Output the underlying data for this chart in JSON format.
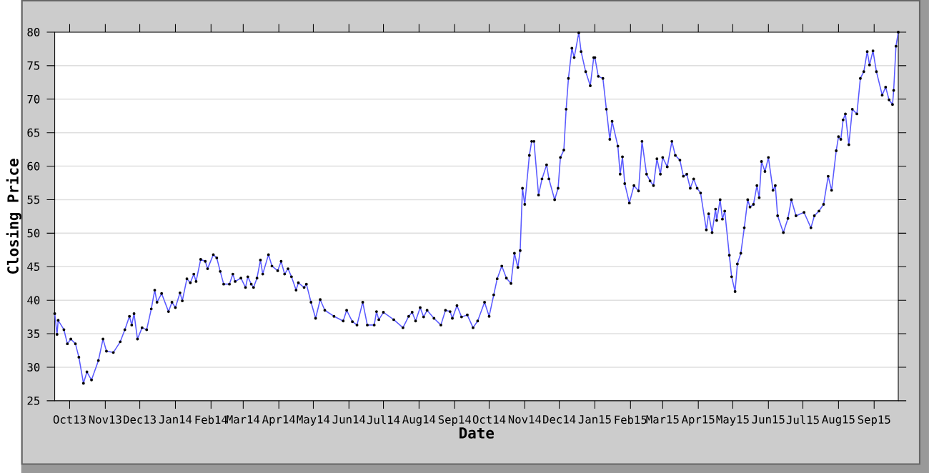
{
  "chart_data": {
    "type": "line",
    "xlabel": "Date",
    "ylabel": "Closing Price",
    "xlim": [
      "2013-09-18",
      "2015-09-22"
    ],
    "ylim": [
      25,
      80
    ],
    "yticks": [
      25,
      30,
      35,
      40,
      45,
      50,
      55,
      60,
      65,
      70,
      75,
      80
    ],
    "xticks": [
      {
        "value": "2013-10-01",
        "label": "Oct13"
      },
      {
        "value": "2013-11-01",
        "label": "Nov13"
      },
      {
        "value": "2013-12-01",
        "label": "Dec13"
      },
      {
        "value": "2014-01-01",
        "label": "Jan14"
      },
      {
        "value": "2014-02-01",
        "label": "Feb14"
      },
      {
        "value": "2014-03-01",
        "label": "Mar14"
      },
      {
        "value": "2014-04-01",
        "label": "Apr14"
      },
      {
        "value": "2014-05-01",
        "label": "May14"
      },
      {
        "value": "2014-06-01",
        "label": "Jun14"
      },
      {
        "value": "2014-07-01",
        "label": "Jul14"
      },
      {
        "value": "2014-08-01",
        "label": "Aug14"
      },
      {
        "value": "2014-09-01",
        "label": "Sep14"
      },
      {
        "value": "2014-10-01",
        "label": "Oct14"
      },
      {
        "value": "2014-11-01",
        "label": "Nov14"
      },
      {
        "value": "2014-12-01",
        "label": "Dec14"
      },
      {
        "value": "2015-01-01",
        "label": "Jan15"
      },
      {
        "value": "2015-02-01",
        "label": "Feb15"
      },
      {
        "value": "2015-03-01",
        "label": "Mar15"
      },
      {
        "value": "2015-04-01",
        "label": "Apr15"
      },
      {
        "value": "2015-05-01",
        "label": "May15"
      },
      {
        "value": "2015-06-01",
        "label": "Jun15"
      },
      {
        "value": "2015-07-01",
        "label": "Jul15"
      },
      {
        "value": "2015-08-01",
        "label": "Aug15"
      },
      {
        "value": "2015-09-01",
        "label": "Sep15"
      }
    ],
    "grid": "y",
    "marker": "circle",
    "line_style": "solid",
    "x": [
      "2013-09-18",
      "2013-09-20",
      "2013-09-21",
      "2013-09-26",
      "2013-09-29",
      "2013-10-02",
      "2013-10-06",
      "2013-10-09",
      "2013-10-13",
      "2013-10-16",
      "2013-10-20",
      "2013-10-26",
      "2013-10-30",
      "2013-11-02",
      "2013-11-08",
      "2013-11-14",
      "2013-11-18",
      "2013-11-22",
      "2013-11-24",
      "2013-11-26",
      "2013-11-29",
      "2013-12-03",
      "2013-12-07",
      "2013-12-11",
      "2013-12-14",
      "2013-12-16",
      "2013-12-20",
      "2013-12-26",
      "2013-12-29",
      "2014-01-01",
      "2014-01-05",
      "2014-01-07",
      "2014-01-11",
      "2014-01-14",
      "2014-01-17",
      "2014-01-19",
      "2014-01-23",
      "2014-01-27",
      "2014-01-29",
      "2014-02-03",
      "2014-02-06",
      "2014-02-09",
      "2014-02-12",
      "2014-02-17",
      "2014-02-20",
      "2014-02-22",
      "2014-02-27",
      "2014-03-03",
      "2014-03-05",
      "2014-03-08",
      "2014-03-10",
      "2014-03-13",
      "2014-03-16",
      "2014-03-18",
      "2014-03-23",
      "2014-03-26",
      "2014-03-31",
      "2014-04-03",
      "2014-04-06",
      "2014-04-09",
      "2014-04-12",
      "2014-04-16",
      "2014-04-18",
      "2014-04-23",
      "2014-04-25",
      "2014-04-29",
      "2014-05-03",
      "2014-05-07",
      "2014-05-11",
      "2014-05-19",
      "2014-05-27",
      "2014-05-30",
      "2014-06-04",
      "2014-06-08",
      "2014-06-13",
      "2014-06-17",
      "2014-06-23",
      "2014-06-25",
      "2014-06-27",
      "2014-07-01",
      "2014-07-10",
      "2014-07-18",
      "2014-07-23",
      "2014-07-26",
      "2014-07-29",
      "2014-08-02",
      "2014-08-05",
      "2014-08-08",
      "2014-08-14",
      "2014-08-20",
      "2014-08-24",
      "2014-08-28",
      "2014-08-30",
      "2014-09-03",
      "2014-09-07",
      "2014-09-12",
      "2014-09-17",
      "2014-09-21",
      "2014-09-27",
      "2014-10-01",
      "2014-10-05",
      "2014-10-08",
      "2014-10-12",
      "2014-10-16",
      "2014-10-20",
      "2014-10-23",
      "2014-10-26",
      "2014-10-28",
      "2014-10-30",
      "2014-11-01",
      "2014-11-05",
      "2014-11-07",
      "2014-11-09",
      "2014-11-13",
      "2014-11-16",
      "2014-11-20",
      "2014-11-22",
      "2014-11-27",
      "2014-11-30",
      "2014-12-02",
      "2014-12-05",
      "2014-12-07",
      "2014-12-09",
      "2014-12-12",
      "2014-12-14",
      "2014-12-18",
      "2014-12-20",
      "2014-12-24",
      "2014-12-28",
      "2014-12-31",
      "2015-01-01",
      "2015-01-04",
      "2015-01-08",
      "2015-01-11",
      "2015-01-14",
      "2015-01-16",
      "2015-01-21",
      "2015-01-23",
      "2015-01-25",
      "2015-01-27",
      "2015-01-31",
      "2015-02-04",
      "2015-02-08",
      "2015-02-11",
      "2015-02-15",
      "2015-02-18",
      "2015-02-21",
      "2015-02-24",
      "2015-02-27",
      "2015-03-01",
      "2015-03-05",
      "2015-03-09",
      "2015-03-12",
      "2015-03-16",
      "2015-03-19",
      "2015-03-22",
      "2015-03-25",
      "2015-03-28",
      "2015-03-31",
      "2015-04-03",
      "2015-04-08",
      "2015-04-10",
      "2015-04-13",
      "2015-04-16",
      "2015-04-17",
      "2015-04-20",
      "2015-04-22",
      "2015-04-24",
      "2015-04-28",
      "2015-04-30",
      "2015-05-03",
      "2015-05-05",
      "2015-05-08",
      "2015-05-11",
      "2015-05-14",
      "2015-05-16",
      "2015-05-19",
      "2015-05-22",
      "2015-05-24",
      "2015-05-26",
      "2015-05-29",
      "2015-06-01",
      "2015-06-05",
      "2015-06-07",
      "2015-06-09",
      "2015-06-14",
      "2015-06-18",
      "2015-06-21",
      "2015-06-25",
      "2015-07-02",
      "2015-07-08",
      "2015-07-11",
      "2015-07-15",
      "2015-07-19",
      "2015-07-23",
      "2015-07-26",
      "2015-07-30",
      "2015-08-01",
      "2015-08-03",
      "2015-08-05",
      "2015-08-07",
      "2015-08-10",
      "2015-08-13",
      "2015-08-17",
      "2015-08-20",
      "2015-08-23",
      "2015-08-26",
      "2015-08-28",
      "2015-08-31",
      "2015-09-03",
      "2015-09-08",
      "2015-09-11",
      "2015-09-14",
      "2015-09-17",
      "2015-09-18",
      "2015-09-20",
      "2015-09-22"
    ],
    "series": [
      {
        "color": "#5a5aff",
        "values": [
          38.0,
          34.9,
          37.0,
          35.6,
          33.5,
          34.2,
          33.5,
          31.5,
          27.6,
          29.3,
          28.1,
          31.0,
          34.2,
          32.4,
          32.2,
          33.8,
          35.6,
          37.6,
          36.3,
          38.0,
          34.2,
          35.9,
          35.6,
          38.7,
          41.5,
          39.7,
          41.0,
          38.3,
          39.7,
          38.9,
          41.1,
          39.9,
          43.2,
          42.6,
          43.9,
          42.8,
          46.1,
          45.8,
          44.7,
          46.8,
          46.3,
          44.3,
          42.4,
          42.4,
          43.9,
          42.8,
          43.3,
          41.9,
          43.5,
          42.4,
          41.9,
          43.3,
          46.0,
          43.9,
          46.8,
          45.1,
          44.4,
          45.8,
          43.9,
          44.7,
          43.5,
          41.5,
          42.6,
          41.9,
          42.4,
          39.7,
          37.3,
          40.1,
          38.5,
          37.6,
          36.9,
          38.5,
          36.8,
          36.3,
          39.7,
          36.3,
          36.3,
          38.3,
          37.1,
          38.2,
          37.1,
          35.9,
          37.6,
          38.2,
          36.9,
          38.9,
          37.5,
          38.5,
          37.3,
          36.3,
          38.5,
          38.3,
          37.3,
          39.2,
          37.5,
          37.8,
          35.9,
          36.9,
          39.7,
          37.6,
          40.8,
          43.2,
          45.1,
          43.3,
          42.5,
          47.0,
          44.9,
          47.4,
          56.7,
          54.3,
          61.6,
          63.7,
          63.7,
          55.7,
          58.1,
          60.2,
          58.1,
          55.0,
          56.7,
          61.3,
          62.4,
          68.5,
          73.1,
          77.6,
          76.2,
          79.9,
          77.1,
          74.1,
          72.0,
          76.2,
          76.2,
          73.4,
          73.1,
          68.5,
          64.0,
          66.7,
          63.0,
          58.8,
          61.4,
          57.4,
          54.5,
          57.1,
          56.3,
          63.7,
          58.8,
          57.8,
          57.1,
          61.1,
          58.8,
          61.3,
          59.9,
          63.7,
          61.6,
          60.9,
          58.5,
          58.8,
          56.7,
          58.1,
          56.7,
          56.0,
          50.5,
          52.9,
          50.1,
          53.6,
          51.9,
          55.0,
          52.1,
          53.3,
          46.7,
          43.5,
          41.3,
          45.4,
          47.0,
          50.8,
          55.0,
          53.9,
          54.3,
          57.1,
          55.3,
          60.7,
          59.2,
          61.3,
          56.4,
          57.1,
          52.6,
          50.1,
          52.2,
          55.0,
          52.6,
          53.1,
          50.8,
          52.6,
          53.3,
          54.3,
          58.5,
          56.4,
          62.3,
          64.4,
          64.0,
          66.9,
          67.8,
          63.2,
          68.5,
          67.8,
          73.1,
          74.1,
          77.1,
          75.1,
          77.2,
          74.1,
          70.6,
          71.8,
          69.9,
          69.2,
          71.3,
          77.9,
          80.0
        ]
      }
    ]
  }
}
